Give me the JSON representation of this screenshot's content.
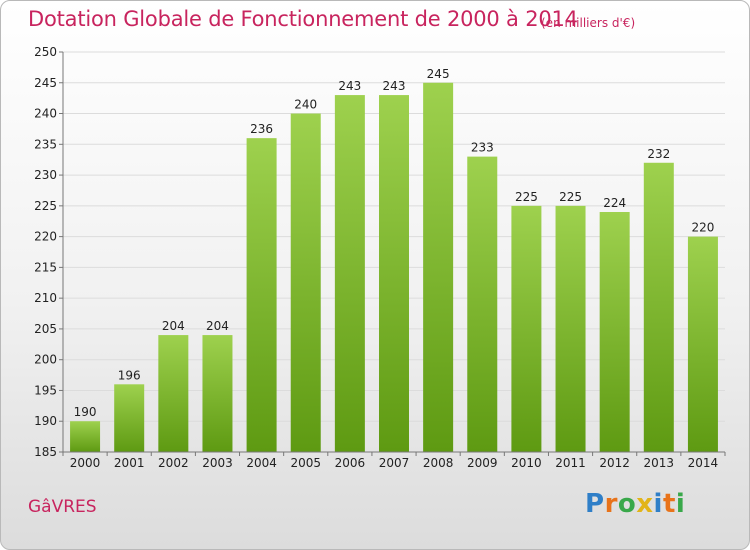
{
  "header": {
    "title": "Dotation Globale de Fonctionnement de 2000 à 2014",
    "unit": "(en milliers d'€)"
  },
  "footer": {
    "commune": "GâVRES",
    "logo": {
      "letters": [
        {
          "char": "P",
          "color": "#2f7fc8"
        },
        {
          "char": "r",
          "color": "#e8731a"
        },
        {
          "char": "o",
          "color": "#39a84a"
        },
        {
          "char": "x",
          "color": "#e2b419"
        },
        {
          "char": "i",
          "color": "#2f7fc8"
        },
        {
          "char": "t",
          "color": "#e8731a"
        },
        {
          "char": "i",
          "color": "#39a84a"
        }
      ]
    }
  },
  "chart_data": {
    "type": "bar",
    "title": "Dotation Globale de Fonctionnement de 2000 à 2014",
    "subtitle": "(en milliers d'€)",
    "categories": [
      "2000",
      "2001",
      "2002",
      "2003",
      "2004",
      "2005",
      "2006",
      "2007",
      "2008",
      "2009",
      "2010",
      "2011",
      "2012",
      "2013",
      "2014"
    ],
    "values": [
      190,
      196,
      204,
      204,
      236,
      240,
      243,
      243,
      245,
      233,
      225,
      225,
      224,
      232,
      220
    ],
    "ylim": [
      185,
      250
    ],
    "yticks": [
      185,
      190,
      195,
      200,
      205,
      210,
      215,
      220,
      225,
      230,
      235,
      240,
      245,
      250
    ],
    "grid": true,
    "legend": "none",
    "colors": {
      "bar_top": "#9ed14e",
      "bar_bottom": "#5e9a12",
      "grid": "#dcdcdc"
    }
  }
}
